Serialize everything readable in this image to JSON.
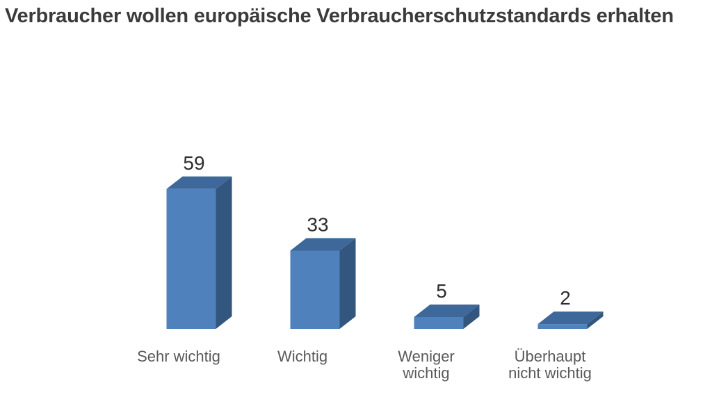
{
  "title": {
    "text": "Verbraucher wollen europäische Verbraucherschutzstandards erhalten",
    "color": "#3b3b3b"
  },
  "chart_data": {
    "type": "bar",
    "style": "3d-column",
    "title": "Verbraucher wollen europäische Verbraucherschutzstandards erhalten",
    "categories": [
      "Sehr wichtig",
      "Wichtig",
      "Weniger wichtig",
      "Überhaupt nicht wichtig"
    ],
    "category_label_lines": [
      [
        "Sehr wichtig"
      ],
      [
        "Wichtig"
      ],
      [
        "Weniger",
        "wichtig"
      ],
      [
        "Überhaupt",
        "nicht wichtig"
      ]
    ],
    "values": [
      59,
      33,
      5,
      2
    ],
    "data_labels": [
      "59",
      "33",
      "5",
      "2"
    ],
    "data_labels_shown": true,
    "xlabel": "",
    "ylabel": "",
    "ylim": [
      0,
      60
    ],
    "axes_hidden": true,
    "grid": false,
    "legend": "none",
    "background": "#ffffff",
    "colors": {
      "bar_front": "#4f81bd",
      "bar_top": "#3e689a",
      "bar_side": "#32567e",
      "value_label": "#2e2e2e",
      "category_label": "#595959"
    }
  }
}
